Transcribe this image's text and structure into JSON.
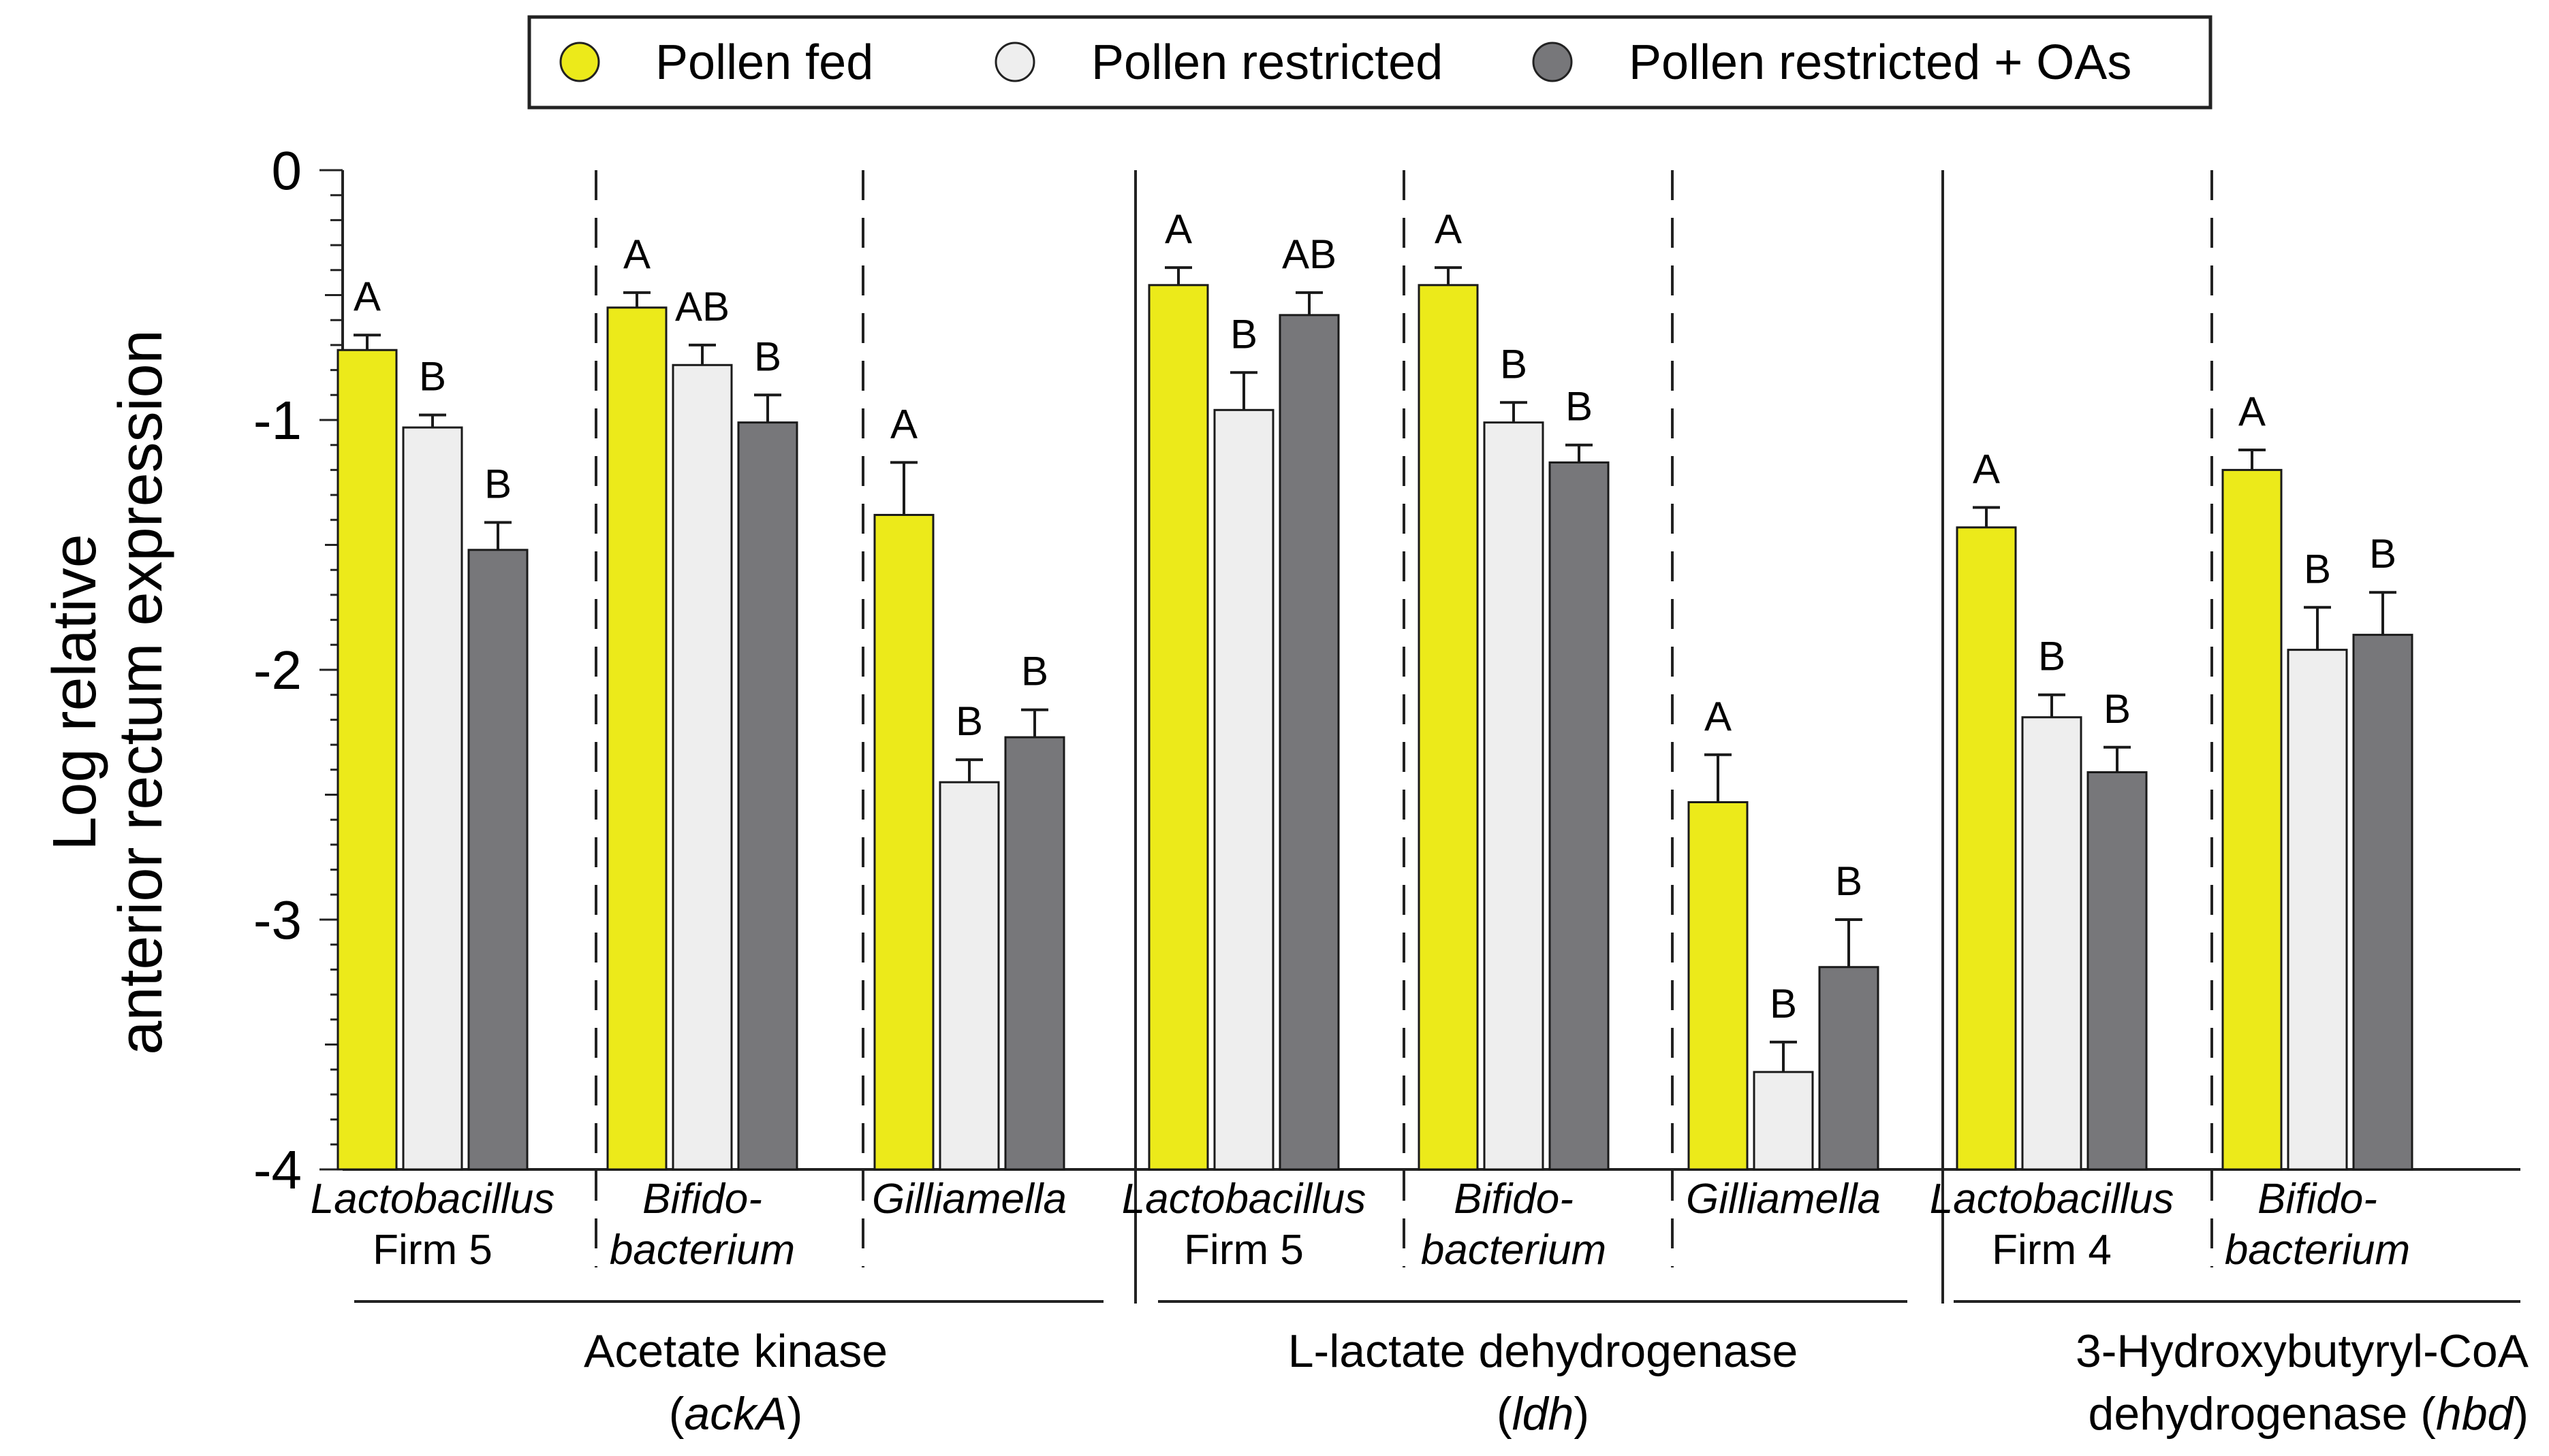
{
  "colors": {
    "pollen_fed": "#ecea1a",
    "pollen_restricted": "#eeeeee",
    "pollen_restricted_oas": "#77777a",
    "bar_stroke": "#1a1a1a"
  },
  "chart_data": {
    "type": "bar",
    "title": "",
    "ylabel_line1": "Log relative",
    "ylabel_line2": "anterior rectum expression",
    "ylim": [
      -4,
      0
    ],
    "yticks": [
      "0",
      "-1",
      "-2",
      "-3",
      "-4"
    ],
    "legend": [
      {
        "name": "Pollen fed",
        "color": "#ecea1a"
      },
      {
        "name": "Pollen restricted",
        "color": "#eeeeee"
      },
      {
        "name": "Pollen restricted + OAs",
        "color": "#77777a"
      }
    ],
    "legend_position": "top",
    "genes": [
      {
        "label": "Acetate kinase",
        "abbr": "ackA",
        "categories": [
          {
            "line1": "Lactobacillus",
            "line2": "Firm 5",
            "italic_line2": false,
            "values": [
              -0.72,
              -1.03,
              -1.52
            ],
            "errors": [
              0.06,
              0.05,
              0.11
            ],
            "letters": [
              "A",
              "B",
              "B"
            ]
          },
          {
            "line1": "Bifido-",
            "line2": "bacterium",
            "italic_line2": true,
            "values": [
              -0.55,
              -0.78,
              -1.01
            ],
            "errors": [
              0.06,
              0.08,
              0.11
            ],
            "letters": [
              "A",
              "AB",
              "B"
            ]
          },
          {
            "line1": "Gilliamella",
            "line2": "",
            "italic_line2": false,
            "values": [
              -1.38,
              -2.45,
              -2.27
            ],
            "errors": [
              0.21,
              0.09,
              0.11
            ],
            "letters": [
              "A",
              "B",
              "B"
            ]
          }
        ]
      },
      {
        "label": "L-lactate dehydrogenase",
        "abbr": "ldh",
        "categories": [
          {
            "line1": "Lactobacillus",
            "line2": "Firm 5",
            "italic_line2": false,
            "values": [
              -0.46,
              -0.96,
              -0.58
            ],
            "errors": [
              0.07,
              0.15,
              0.09
            ],
            "letters": [
              "A",
              "B",
              "AB"
            ]
          },
          {
            "line1": "Bifido-",
            "line2": "bacterium",
            "italic_line2": true,
            "values": [
              -0.46,
              -1.01,
              -1.17
            ],
            "errors": [
              0.07,
              0.08,
              0.07
            ],
            "letters": [
              "A",
              "B",
              "B"
            ]
          },
          {
            "line1": "Gilliamella",
            "line2": "",
            "italic_line2": false,
            "values": [
              -2.53,
              -3.61,
              -3.19
            ],
            "errors": [
              0.19,
              0.12,
              0.19
            ],
            "letters": [
              "A",
              "B",
              "B"
            ]
          }
        ]
      },
      {
        "label": "3-Hydroxybutyryl-CoA",
        "label_line2": "dehydrogenase",
        "abbr": "hbd",
        "categories": [
          {
            "line1": "Lactobacillus",
            "line2": "Firm 4",
            "italic_line2": false,
            "values": [
              -1.43,
              -2.19,
              -2.41
            ],
            "errors": [
              0.08,
              0.09,
              0.1
            ],
            "letters": [
              "A",
              "B",
              "B"
            ]
          },
          {
            "line1": "Bifido-",
            "line2": "bacterium",
            "italic_line2": true,
            "values": [
              -1.2,
              -1.92,
              -1.86
            ],
            "errors": [
              0.08,
              0.17,
              0.17
            ],
            "letters": [
              "A",
              "B",
              "B"
            ]
          }
        ]
      }
    ]
  }
}
